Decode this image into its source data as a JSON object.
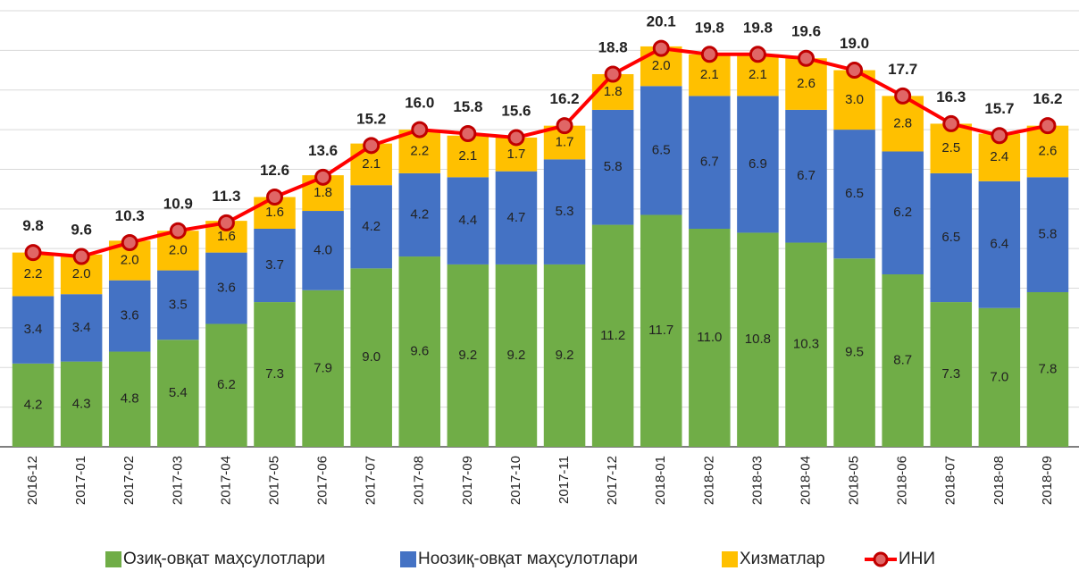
{
  "chart_data": {
    "type": "stacked-bar-line",
    "categories": [
      "2016-12",
      "2017-01",
      "2017-02",
      "2017-03",
      "2017-04",
      "2017-05",
      "2017-06",
      "2017-07",
      "2017-08",
      "2017-09",
      "2017-10",
      "2017-11",
      "2017-12",
      "2018-01",
      "2018-02",
      "2018-03",
      "2018-04",
      "2018-05",
      "2018-06",
      "2018-07",
      "2018-08",
      "2018-09"
    ],
    "series": [
      {
        "name": "Озиқ-овқат маҳсулотлари",
        "type": "bar",
        "color": "#70ad47",
        "values": [
          4.2,
          4.3,
          4.8,
          5.4,
          6.2,
          7.3,
          7.9,
          9.0,
          9.6,
          9.2,
          9.2,
          9.2,
          11.2,
          11.7,
          11.0,
          10.8,
          10.3,
          9.5,
          8.7,
          7.3,
          7.0,
          7.8
        ],
        "value_labels": [
          "4.2",
          "4.3",
          "4.8",
          "5.4",
          "6.2",
          "7.3",
          "7.9",
          "9.0",
          "9.6",
          "9.2",
          "9.2",
          "9.2",
          "11.2",
          "11.7",
          "11.0",
          "10.8",
          "10.3",
          "9.5",
          "8.7",
          "7.3",
          "7.0",
          "7.8"
        ]
      },
      {
        "name": "Ноозиқ-овқат маҳсулотлари",
        "type": "bar",
        "color": "#4472c4",
        "values": [
          3.4,
          3.4,
          3.6,
          3.5,
          3.6,
          3.7,
          4.0,
          4.2,
          4.2,
          4.4,
          4.7,
          5.3,
          5.8,
          6.5,
          6.7,
          6.9,
          6.7,
          6.5,
          6.2,
          6.5,
          6.4,
          5.8
        ],
        "value_labels": [
          "3.4",
          "3.4",
          "3.6",
          "3.5",
          "3.6",
          "3.7",
          "4.0",
          "4.2",
          "4.2",
          "4.4",
          "4.7",
          "5.3",
          "5.8",
          "6.5",
          "6.7",
          "6.9",
          "6.7",
          "6.5",
          "6.2",
          "6.5",
          "6.4",
          "5.8"
        ]
      },
      {
        "name": "Хизматлар",
        "type": "bar",
        "color": "#ffc000",
        "values": [
          2.2,
          2.0,
          2.0,
          2.0,
          1.6,
          1.6,
          1.8,
          2.1,
          2.2,
          2.1,
          1.7,
          1.7,
          1.8,
          2.0,
          2.1,
          2.1,
          2.6,
          3.0,
          2.8,
          2.5,
          2.4,
          2.6
        ],
        "value_labels": [
          "2.2",
          "2.0",
          "2.0",
          "2.0",
          "1.6",
          "1.6",
          "1.8",
          "2.1",
          "2.2",
          "2.1",
          "1.7",
          "1.7",
          "1.8",
          "2.0",
          "2.1",
          "2.1",
          "2.6",
          "3.0",
          "2.8",
          "2.5",
          "2.4",
          "2.6"
        ]
      },
      {
        "name": "ИНИ",
        "type": "line",
        "color": "#ff0000",
        "values": [
          9.8,
          9.6,
          10.3,
          10.9,
          11.3,
          12.6,
          13.6,
          15.2,
          16.0,
          15.8,
          15.6,
          16.2,
          18.8,
          20.1,
          19.8,
          19.8,
          19.6,
          19.0,
          17.7,
          16.3,
          15.7,
          16.2
        ],
        "value_labels": [
          "9.8",
          "9.6",
          "10.3",
          "10.9",
          "11.3",
          "12.6",
          "13.6",
          "15.2",
          "16.0",
          "15.8",
          "15.6",
          "16.2",
          "18.8",
          "20.1",
          "19.8",
          "19.8",
          "19.6",
          "19.0",
          "17.7",
          "16.3",
          "15.7",
          "16.2"
        ]
      }
    ],
    "ylim": [
      0,
      22
    ],
    "yticks": [
      0,
      2,
      4,
      6,
      8,
      10,
      12,
      14,
      16,
      18,
      20,
      22
    ],
    "grid": true
  }
}
